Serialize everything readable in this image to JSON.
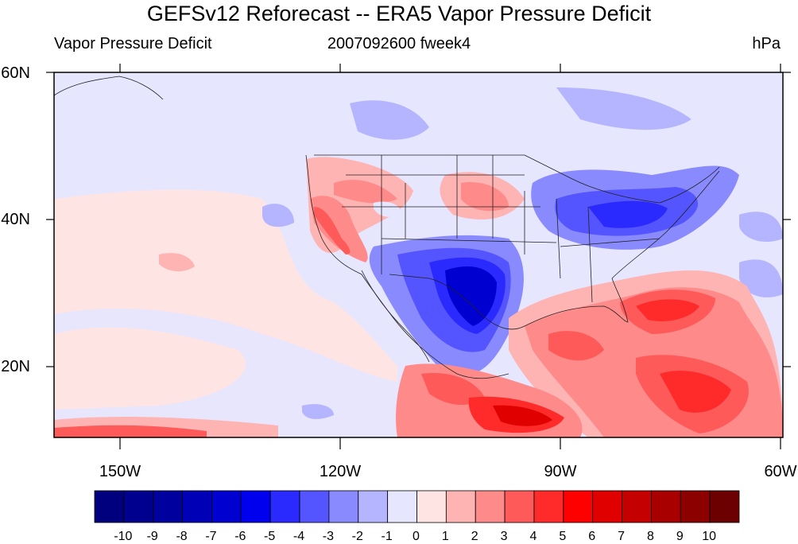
{
  "title": "GEFSv12 Reforecast -- ERA5 Vapor Pressure Deficit",
  "subtitle_left": "Vapor Pressure Deficit",
  "subtitle_center": "2007092600 fweek4",
  "subtitle_right": "hPa",
  "map": {
    "lon_range": [
      -160,
      -60
    ],
    "lat_range": [
      10,
      60
    ],
    "lat_labels": [
      "60N",
      "40N",
      "20N"
    ],
    "lon_labels": [
      "150W",
      "120W",
      "90W",
      "60W"
    ]
  },
  "colorbar": {
    "labels": [
      "-10",
      "-9",
      "-8",
      "-7",
      "-6",
      "-5",
      "-4",
      "-3",
      "-2",
      "-1",
      "0",
      "1",
      "2",
      "3",
      "4",
      "5",
      "6",
      "7",
      "8",
      "9",
      "10"
    ],
    "colors": [
      "#00007f",
      "#00008e",
      "#00009f",
      "#0000b6",
      "#0000d0",
      "#0000ee",
      "#2a2aff",
      "#5555ff",
      "#8a8aff",
      "#b4b4ff",
      "#e6e6ff",
      "#ffe4e4",
      "#ffb4b4",
      "#ff8a8a",
      "#ff5a5a",
      "#ff2a2a",
      "#ff0000",
      "#e00000",
      "#c40000",
      "#a80000",
      "#8c0000",
      "#6c0000"
    ]
  }
}
